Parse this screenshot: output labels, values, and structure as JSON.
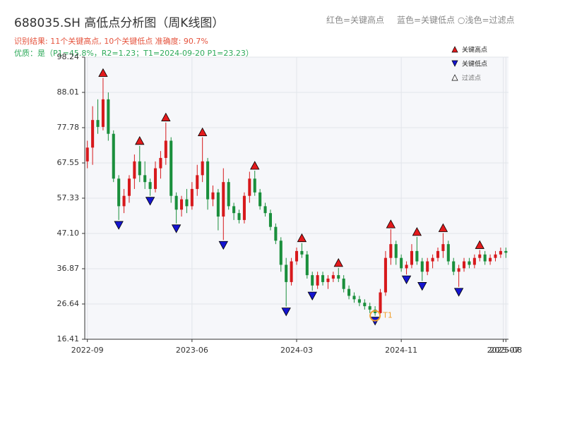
{
  "chart_data": {
    "type": "candlestick",
    "title": "688035.SH 高低点分析图（周K线图）",
    "subtitle": "识别结果: 11个关键高点, 10个关键低点  准确度: 90.7%",
    "quality_note": "优质：是（P1=45.8%，R2=1.23；T1=2024-09-20 P1=23.23）",
    "header_legend": [
      "红色=关键高点",
      "蓝色=关键低点",
      "○浅色=过滤点"
    ],
    "legend": [
      {
        "name": "关键高点",
        "color": "#e31a1c"
      },
      {
        "name": "关键低点",
        "color": "#1515d0"
      },
      {
        "name": "过滤点",
        "color": "#ffffff"
      }
    ],
    "legend_position": "upper right",
    "up_color": "#d7191c",
    "down_color": "#1a8f3c",
    "open": [
      68,
      72,
      80,
      78,
      86,
      76,
      63,
      55,
      58,
      63,
      68,
      64,
      62,
      60,
      66,
      69,
      74,
      58,
      54,
      57,
      55,
      60,
      64,
      68,
      57,
      59,
      52,
      62,
      55,
      53,
      51,
      58,
      63,
      59,
      55,
      53,
      49,
      45,
      38,
      33,
      39,
      42,
      41,
      35,
      32,
      35,
      33,
      34,
      35,
      34,
      31,
      29,
      28,
      27,
      26,
      25,
      24,
      30,
      40,
      44,
      40,
      37,
      38,
      42,
      39,
      36,
      39,
      40,
      42,
      44,
      39,
      36,
      37,
      39,
      38,
      40,
      41,
      39,
      40,
      41,
      42
    ],
    "high": [
      74,
      84,
      86,
      92.2,
      88,
      77,
      64,
      60,
      64,
      70,
      72.5,
      68,
      63,
      68,
      71,
      79.3,
      75,
      59,
      58,
      60,
      62,
      67,
      75,
      69,
      61,
      60,
      66,
      63,
      56,
      54,
      59,
      65,
      65.3,
      60,
      56,
      54,
      50,
      46,
      40,
      40,
      43,
      44.3,
      42,
      36,
      36,
      36,
      35,
      36,
      37.1,
      35,
      32,
      30,
      29,
      28,
      27,
      26,
      31,
      42,
      48.3,
      45,
      41,
      39,
      44,
      46.1,
      40,
      40,
      41,
      43,
      47.2,
      45,
      40,
      38,
      40,
      40,
      41,
      42.3,
      42,
      41,
      42,
      43,
      43
    ],
    "low": [
      66,
      67,
      76,
      77,
      74,
      62,
      51,
      53,
      56,
      60,
      62,
      60,
      58,
      59,
      63,
      67,
      56,
      50,
      52,
      53,
      54,
      58,
      62,
      54,
      55,
      48,
      45.2,
      54,
      51,
      50,
      50,
      56,
      58,
      54,
      52,
      48,
      44,
      36,
      25.9,
      32,
      38,
      40,
      34,
      30.5,
      31,
      32,
      31,
      33,
      33,
      30,
      28,
      27,
      26,
      25,
      24,
      23.23,
      23.8,
      29,
      38,
      38,
      36,
      35.2,
      37,
      38,
      33.3,
      35,
      37,
      39,
      40,
      38,
      35,
      31.6,
      36,
      37,
      37,
      39,
      38,
      38,
      39,
      40,
      40
    ],
    "close": [
      72,
      80,
      78,
      86,
      76,
      63,
      55,
      58,
      63,
      68,
      64,
      62,
      60,
      66,
      69,
      74,
      58,
      54,
      57,
      55,
      60,
      64,
      68,
      57,
      59,
      52,
      62,
      55,
      53,
      51,
      58,
      63,
      59,
      55,
      53,
      49,
      45,
      38,
      33,
      39,
      42,
      41,
      35,
      32,
      35,
      33,
      34,
      35,
      34,
      31,
      29,
      28,
      27,
      26,
      25,
      24,
      30,
      40,
      44,
      40,
      37,
      38,
      42,
      39,
      36,
      39,
      40,
      42,
      44,
      39,
      36,
      37,
      39,
      38,
      40,
      41,
      39,
      40,
      41,
      42,
      41.5
    ],
    "key_highs": [
      3,
      10,
      15,
      22,
      32,
      41,
      48,
      58,
      63,
      68,
      75
    ],
    "key_lows": [
      6,
      12,
      17,
      26,
      38,
      43,
      55,
      61,
      64,
      71
    ],
    "annotation": {
      "label": "T1",
      "index": 55
    },
    "xlim": [
      -0.5,
      80.5
    ],
    "xticks": [
      {
        "value": 0,
        "label": "2022-09"
      },
      {
        "value": 20,
        "label": "2023-06"
      },
      {
        "value": 40,
        "label": "2024-03"
      },
      {
        "value": 60,
        "label": "2024-11"
      },
      {
        "value": 79.5,
        "label": "2025-07"
      },
      {
        "value": 80,
        "label": "2025-08"
      }
    ],
    "ylim": [
      16.41,
      98.24
    ],
    "yticks": [
      16.41,
      26.64,
      36.87,
      {
        "value": 47.1,
        "label": "47.10"
      },
      57.33,
      67.55,
      77.78,
      88.01,
      98.24
    ],
    "grid": true
  }
}
